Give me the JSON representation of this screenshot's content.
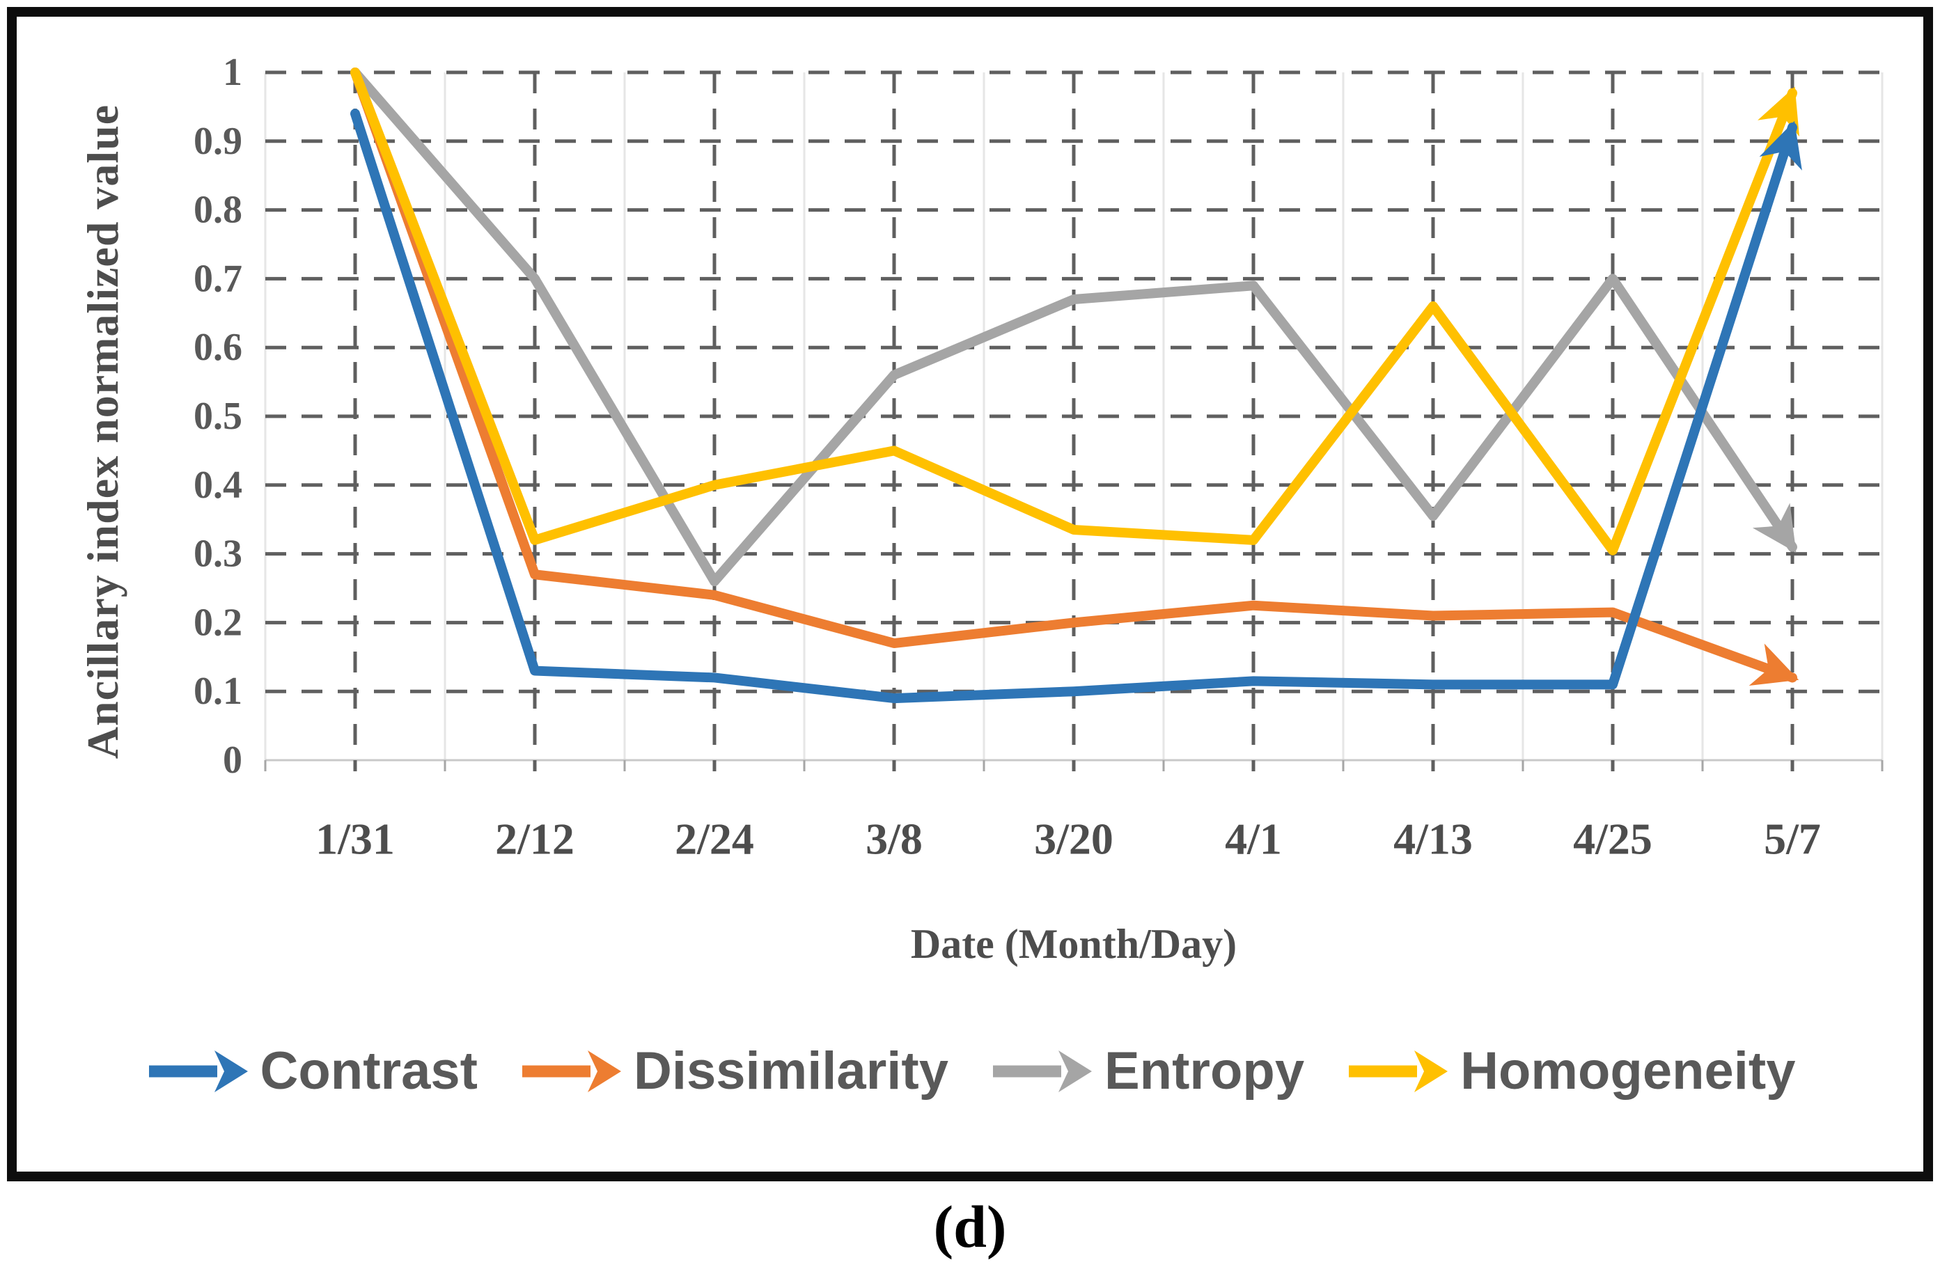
{
  "figure": {
    "caption": "(d)"
  },
  "chart_data": {
    "type": "line",
    "title": "",
    "xlabel": "Date (Month/Day)",
    "ylabel": "Ancillary index normalized value",
    "categories": [
      "1/31",
      "2/12",
      "2/24",
      "3/8",
      "3/20",
      "4/1",
      "4/13",
      "4/25",
      "5/7"
    ],
    "ylim": [
      0,
      1
    ],
    "y_tick_labels": [
      "1",
      "0.9",
      "0.8",
      "0.7",
      "0.6",
      "0.5",
      "0.4",
      "0.3",
      "0.2",
      "0.1",
      "0"
    ],
    "grid": "dashed major horizontal and vertical, faint solid minor verticals",
    "legend_position": "bottom",
    "line_end_style": "arrowhead",
    "series": [
      {
        "name": "Contrast",
        "color": "#2E75B6",
        "values": [
          0.94,
          0.13,
          0.12,
          0.09,
          0.1,
          0.115,
          0.11,
          0.11,
          0.92
        ]
      },
      {
        "name": "Dissimilarity",
        "color": "#ED7D31",
        "values": [
          1.0,
          0.27,
          0.24,
          0.17,
          0.2,
          0.225,
          0.21,
          0.215,
          0.12
        ]
      },
      {
        "name": "Entropy",
        "color": "#A5A5A5",
        "values": [
          1.0,
          0.7,
          0.26,
          0.56,
          0.67,
          0.69,
          0.355,
          0.7,
          0.31
        ]
      },
      {
        "name": "Homogeneity",
        "color": "#FFC000",
        "values": [
          1.0,
          0.32,
          0.4,
          0.45,
          0.335,
          0.32,
          0.66,
          0.305,
          0.97
        ]
      }
    ],
    "style_colors": {
      "major_gridline": "#5f5f5f",
      "minor_gridline": "#e6e6e6",
      "axis_line": "#c9c9c9",
      "tick_mark": "#a6a6a6",
      "tick_text": "#595959",
      "axis_title_text": "#4d4d4d",
      "frame_border": "#0d0d0d"
    }
  }
}
